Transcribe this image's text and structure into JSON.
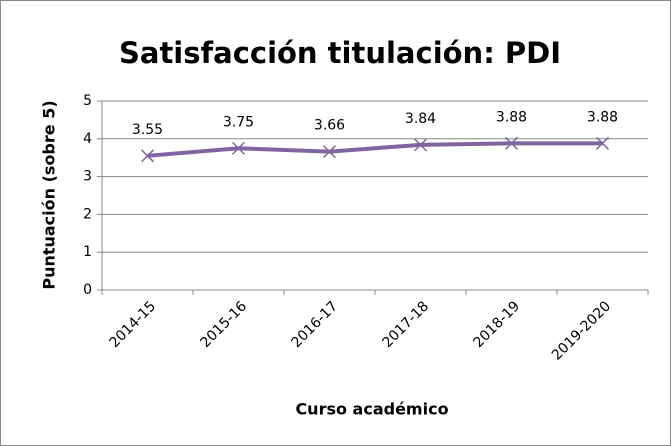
{
  "chart_data": {
    "type": "line",
    "title": "Satisfacción titulación: PDI",
    "x_label": "Curso académico",
    "y_label": "Puntuación (sobre 5)",
    "categories": [
      "2014-15",
      "2015-16",
      "2016-17",
      "2017-18",
      "2018-19",
      "2019-2020"
    ],
    "series": [
      {
        "name": "PDI",
        "color": "#8064a2",
        "values": [
          3.55,
          3.75,
          3.66,
          3.84,
          3.88,
          3.88
        ]
      }
    ],
    "ylim": [
      0,
      5
    ],
    "yticks": [
      0,
      1,
      2,
      3,
      4,
      5
    ],
    "grid": true
  }
}
